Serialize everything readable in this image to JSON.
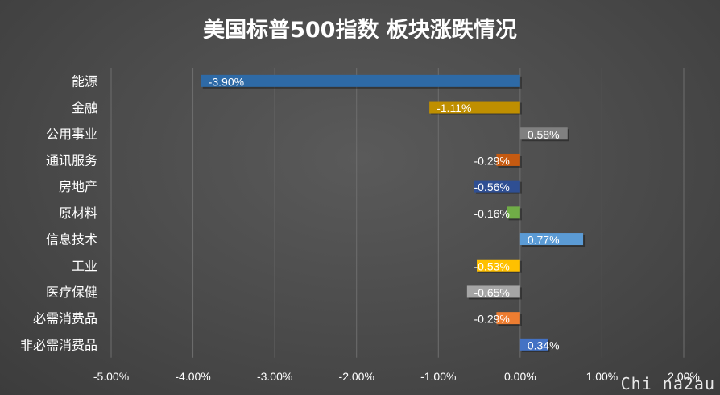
{
  "watermark": "Chi na2au",
  "chart_data": {
    "type": "bar",
    "orientation": "horizontal",
    "title": "美国标普500指数 板块涨跌情况",
    "categories": [
      "能源",
      "金融",
      "公用事业",
      "通讯服务",
      "房地产",
      "原材料",
      "信息技术",
      "工业",
      "医疗保健",
      "必需消费品",
      "非必需消费品"
    ],
    "values": [
      -3.9,
      -1.11,
      0.58,
      -0.29,
      -0.56,
      -0.16,
      0.77,
      -0.53,
      -0.65,
      -0.29,
      0.34
    ],
    "value_labels": [
      "-3.90%",
      "-1.11%",
      "0.58%",
      "-0.29%",
      "-0.56%",
      "-0.16%",
      "0.77%",
      "-0.53%",
      "-0.65%",
      "-0.29%",
      "0.34%"
    ],
    "colors": [
      "#2e6aa6",
      "#bf8f00",
      "#808080",
      "#c55a11",
      "#2f4f93",
      "#70ad47",
      "#5b9bd5",
      "#ffc000",
      "#a5a5a5",
      "#ed7d31",
      "#4472c4"
    ],
    "xlim": [
      -5,
      2
    ],
    "xticks": [
      -5,
      -4,
      -3,
      -2,
      -1,
      0,
      1,
      2
    ],
    "xtick_labels": [
      "-5.00%",
      "-4.00%",
      "-3.00%",
      "-2.00%",
      "-1.00%",
      "0.00%",
      "1.00%",
      "2.00%"
    ],
    "grid": true,
    "legend": "none"
  }
}
